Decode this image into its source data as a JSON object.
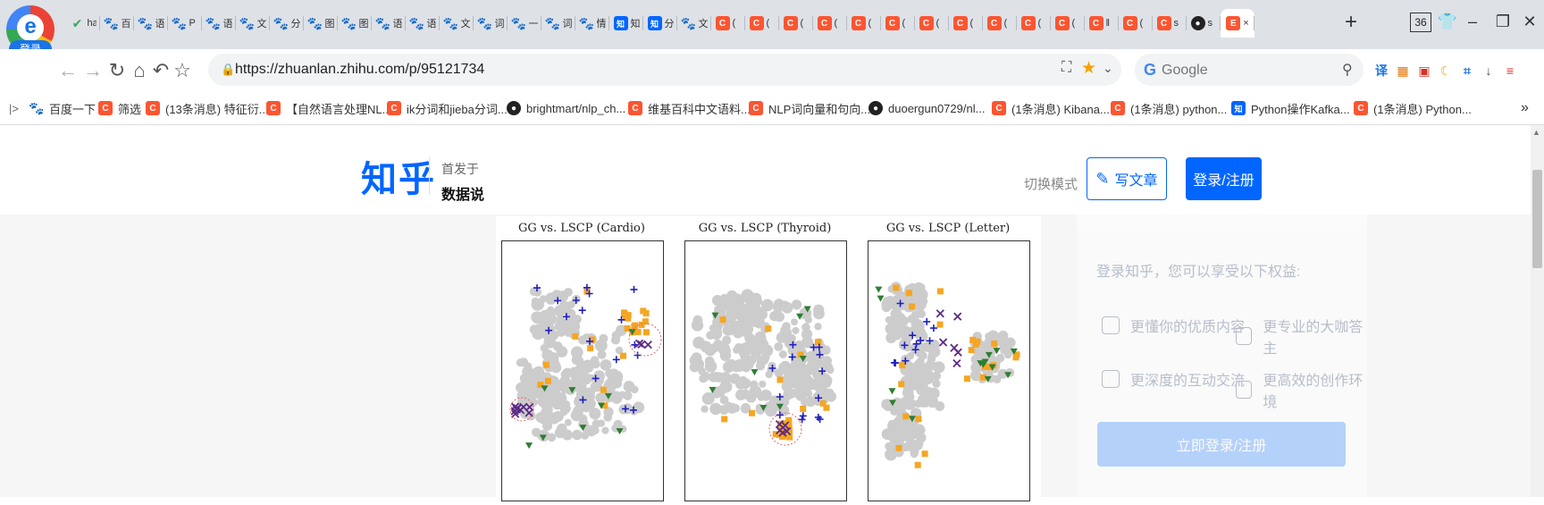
{
  "browser": {
    "profile_login": "登录",
    "tabs": [
      {
        "icon": "check-icon",
        "fav": "✔",
        "text": "hao"
      },
      {
        "icon": "paw-icon",
        "fav": "🐾",
        "text": "百"
      },
      {
        "icon": "paw-icon",
        "fav": "🐾",
        "text": "语"
      },
      {
        "icon": "paw-icon",
        "fav": "🐾",
        "text": "P"
      },
      {
        "icon": "paw-icon",
        "fav": "🐾",
        "text": "语"
      },
      {
        "icon": "paw-icon",
        "fav": "🐾",
        "text": "文"
      },
      {
        "icon": "paw-icon",
        "fav": "🐾",
        "text": "分"
      },
      {
        "icon": "paw-icon",
        "fav": "🐾",
        "text": "图"
      },
      {
        "icon": "paw-icon",
        "fav": "🐾",
        "text": "图"
      },
      {
        "icon": "paw-icon",
        "fav": "🐾",
        "text": "语"
      },
      {
        "icon": "paw-icon",
        "fav": "🐾",
        "text": "语"
      },
      {
        "icon": "paw-icon",
        "fav": "🐾",
        "text": "文"
      },
      {
        "icon": "paw-icon",
        "fav": "🐾",
        "text": "词"
      },
      {
        "icon": "paw-icon",
        "fav": "🐾",
        "text": "一"
      },
      {
        "icon": "paw-icon",
        "fav": "🐾",
        "text": "词"
      },
      {
        "icon": "paw-icon",
        "fav": "🐾",
        "text": "情"
      },
      {
        "icon": "zhihu-icon",
        "fav": "知",
        "text": "知"
      },
      {
        "icon": "zhihu-icon",
        "fav": "知",
        "text": "分"
      },
      {
        "icon": "paw-icon",
        "fav": "🐾",
        "text": "文"
      },
      {
        "icon": "csdn-icon",
        "fav": "C",
        "text": "("
      },
      {
        "icon": "csdn-icon",
        "fav": "C",
        "text": "("
      },
      {
        "icon": "csdn-icon",
        "fav": "C",
        "text": "("
      },
      {
        "icon": "csdn-icon",
        "fav": "C",
        "text": "("
      },
      {
        "icon": "csdn-icon",
        "fav": "C",
        "text": "("
      },
      {
        "icon": "csdn-icon",
        "fav": "C",
        "text": "("
      },
      {
        "icon": "csdn-icon",
        "fav": "C",
        "text": "("
      },
      {
        "icon": "csdn-icon",
        "fav": "C",
        "text": "("
      },
      {
        "icon": "csdn-icon",
        "fav": "C",
        "text": "("
      },
      {
        "icon": "csdn-icon",
        "fav": "C",
        "text": "("
      },
      {
        "icon": "csdn-icon",
        "fav": "C",
        "text": "("
      },
      {
        "icon": "csdn-icon",
        "fav": "C",
        "text": "‖"
      },
      {
        "icon": "csdn-icon",
        "fav": "C",
        "text": "("
      },
      {
        "icon": "csdn-icon",
        "fav": "C",
        "text": "s"
      },
      {
        "icon": "github-icon",
        "fav": "●",
        "text": "s"
      },
      {
        "icon": "doc-icon",
        "fav": "E",
        "text": "×"
      }
    ],
    "new_tab": "+",
    "window_count": "36",
    "url": "https://zhuanlan.zhihu.com/p/95121734",
    "search_placeholder": "Google",
    "extensions": [
      {
        "icon": "translate-icon",
        "glyph": "译",
        "color": "#1a73e8"
      },
      {
        "icon": "apps-icon",
        "glyph": "▦",
        "color": "#e37400"
      },
      {
        "icon": "pdf-icon",
        "glyph": "▣",
        "color": "#d93025"
      },
      {
        "icon": "moon-icon",
        "glyph": "☾",
        "color": "#f29900"
      },
      {
        "icon": "crop-icon",
        "glyph": "⌗",
        "color": "#1a73e8"
      },
      {
        "icon": "download-icon",
        "glyph": "↓",
        "color": "#444"
      },
      {
        "icon": "menu-icon",
        "glyph": "≡",
        "color": "#d93025"
      }
    ],
    "bookmarks": [
      {
        "icon": "paw-icon",
        "fav": "🐾",
        "text": "百度一下"
      },
      {
        "icon": "csdn-icon",
        "fav": "C",
        "text": "筛选"
      },
      {
        "icon": "csdn-icon",
        "fav": "C",
        "text": "(13条消息) 特征衍..."
      },
      {
        "icon": "csdn-icon",
        "fav": "C",
        "text": "【自然语言处理NL..."
      },
      {
        "icon": "csdn-icon",
        "fav": "C",
        "text": "ik分词和jieba分词..."
      },
      {
        "icon": "github-icon",
        "fav": "●",
        "text": "brightmart/nlp_ch..."
      },
      {
        "icon": "csdn-icon",
        "fav": "C",
        "text": "维基百科中文语料..."
      },
      {
        "icon": "csdn-icon",
        "fav": "C",
        "text": "NLP词向量和句向..."
      },
      {
        "icon": "github-icon",
        "fav": "●",
        "text": "duoergun0729/nl..."
      },
      {
        "icon": "csdn-icon",
        "fav": "C",
        "text": "(1条消息) Kibana..."
      },
      {
        "icon": "csdn-icon",
        "fav": "C",
        "text": "(1条消息) python..."
      },
      {
        "icon": "zhihu-icon",
        "fav": "知",
        "text": "Python操作Kafka..."
      },
      {
        "icon": "csdn-icon",
        "fav": "C",
        "text": "(1条消息) Python..."
      }
    ],
    "bookmarks_more": "»"
  },
  "zhihu": {
    "logo": "知乎",
    "first_published": "首发于",
    "column_name": "数据说",
    "switch_mode": "切换模式",
    "write_article": "写文章",
    "login_register": "登录/注册"
  },
  "article": {
    "figures": [
      {
        "title": "GG vs. LSCP (Cardio)"
      },
      {
        "title": "GG vs. LSCP (Thyroid)"
      },
      {
        "title": "GG vs. LSCP (Letter)"
      }
    ],
    "colors": {
      "inlier": "#cccccc",
      "outlier": "#f5a623",
      "gg": "#2e7d32",
      "lscp": "#1f1fc0",
      "both": "#5b2a86",
      "circle": "#e06666"
    }
  },
  "sidebar": {
    "title": "登录知乎，您可以享受以下权益:",
    "benefits": [
      "更懂你的优质内容",
      "更专业的大咖答主",
      "更深度的互动交流",
      "更高效的创作环境"
    ],
    "cta": "立即登录/注册"
  }
}
